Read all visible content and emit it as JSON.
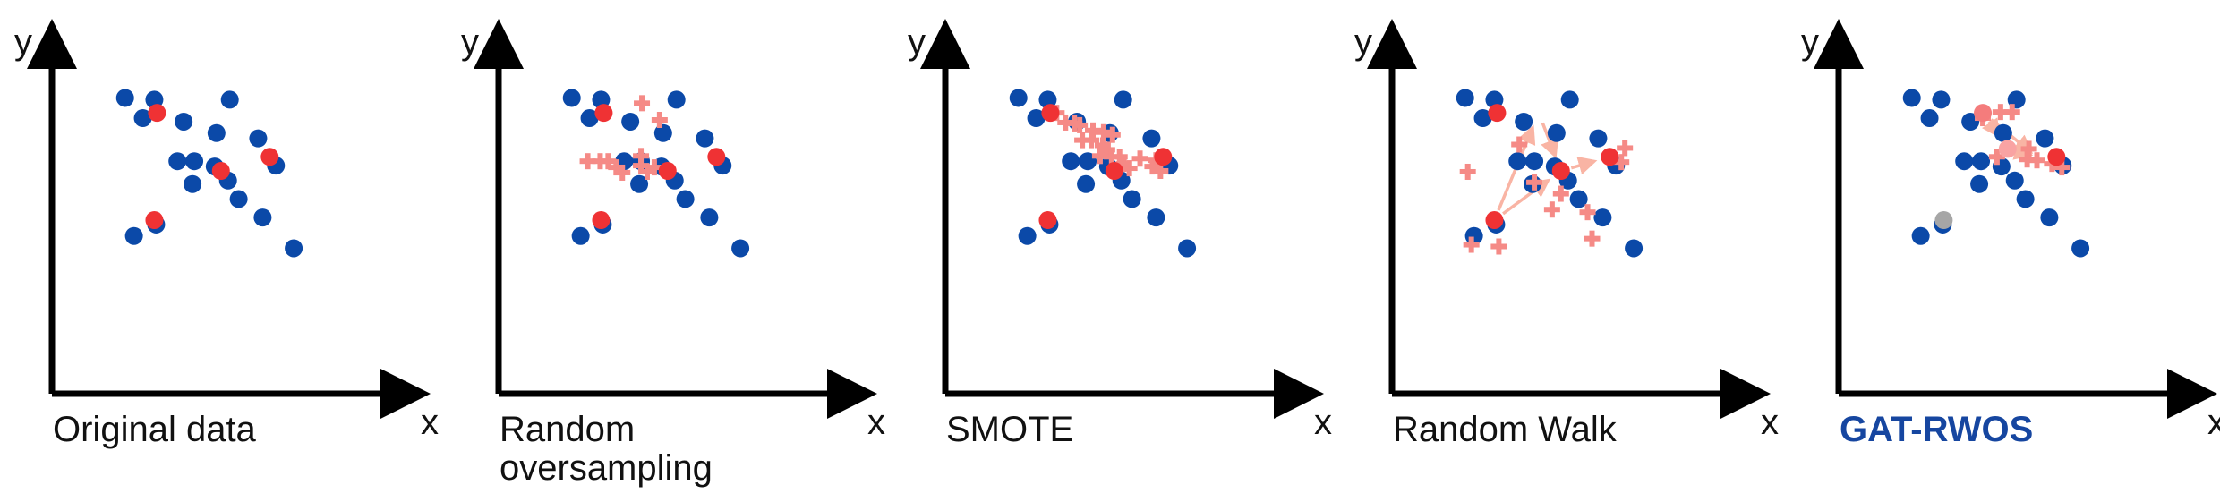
{
  "colors": {
    "majority": "#0b49a8",
    "minority": "#ef3234",
    "synthetic": "#f58a86",
    "arrow": "#f9b4a4",
    "gat_source": "#f47c7c",
    "gat_node": "#f9a3a3",
    "gat_excluded": "#a6a6a6",
    "highlight_caption": "#1646a0",
    "axis": "#000000"
  },
  "panels": [
    {
      "id": "original",
      "axis_labels": {
        "x": "x",
        "y": "y"
      },
      "caption_lines": [
        "Original data"
      ],
      "caption_highlight": false,
      "majority": [
        [
          32,
          32
        ],
        [
          65,
          34
        ],
        [
          150,
          34
        ],
        [
          52,
          55
        ],
        [
          98,
          59
        ],
        [
          135,
          72
        ],
        [
          182,
          78
        ],
        [
          91,
          104
        ],
        [
          110,
          104
        ],
        [
          133,
          110
        ],
        [
          202,
          109
        ],
        [
          148,
          126
        ],
        [
          108,
          130
        ],
        [
          160,
          147
        ],
        [
          187,
          168
        ],
        [
          67,
          176
        ],
        [
          42,
          189
        ],
        [
          222,
          203
        ]
      ],
      "minority": [
        [
          65,
          171
        ],
        [
          140,
          115
        ],
        [
          68,
          49
        ],
        [
          195,
          99
        ]
      ],
      "synthetic": [],
      "arrows": [],
      "special": []
    },
    {
      "id": "random-oversampling",
      "axis_labels": {
        "x": "x",
        "y": "y"
      },
      "caption_lines": [
        "Random",
        "oversampling"
      ],
      "caption_highlight": false,
      "majority": [
        [
          32,
          32
        ],
        [
          65,
          34
        ],
        [
          150,
          34
        ],
        [
          52,
          55
        ],
        [
          98,
          59
        ],
        [
          135,
          72
        ],
        [
          182,
          78
        ],
        [
          91,
          104
        ],
        [
          110,
          104
        ],
        [
          133,
          110
        ],
        [
          202,
          109
        ],
        [
          148,
          126
        ],
        [
          108,
          130
        ],
        [
          160,
          147
        ],
        [
          187,
          168
        ],
        [
          67,
          176
        ],
        [
          42,
          189
        ],
        [
          222,
          203
        ]
      ],
      "minority": [
        [
          65,
          171
        ],
        [
          140,
          115
        ],
        [
          68,
          49
        ],
        [
          195,
          99
        ]
      ],
      "synthetic": [
        [
          111,
          38
        ],
        [
          131,
          57
        ],
        [
          50,
          104
        ],
        [
          82,
          111
        ],
        [
          89,
          117
        ],
        [
          110,
          98
        ],
        [
          117,
          116
        ],
        [
          125,
          111
        ],
        [
          64,
          104
        ],
        [
          73,
          104
        ],
        [
          110,
          109
        ]
      ],
      "arrows": [],
      "special": []
    },
    {
      "id": "smote",
      "axis_labels": {
        "x": "x",
        "y": "y"
      },
      "caption_lines": [
        "SMOTE"
      ],
      "caption_highlight": false,
      "majority": [
        [
          32,
          32
        ],
        [
          65,
          34
        ],
        [
          150,
          34
        ],
        [
          52,
          55
        ],
        [
          98,
          59
        ],
        [
          135,
          72
        ],
        [
          182,
          78
        ],
        [
          91,
          104
        ],
        [
          110,
          104
        ],
        [
          133,
          110
        ],
        [
          202,
          109
        ],
        [
          148,
          126
        ],
        [
          108,
          130
        ],
        [
          160,
          147
        ],
        [
          187,
          168
        ],
        [
          67,
          176
        ],
        [
          42,
          189
        ],
        [
          222,
          203
        ]
      ],
      "minority": [
        [
          65,
          171
        ],
        [
          140,
          115
        ],
        [
          68,
          49
        ],
        [
          195,
          99
        ]
      ],
      "synthetic": [
        [
          75,
          49
        ],
        [
          85,
          60
        ],
        [
          95,
          61
        ],
        [
          101,
          63
        ],
        [
          116,
          69
        ],
        [
          128,
          71
        ],
        [
          138,
          74
        ],
        [
          104,
          80
        ],
        [
          114,
          80
        ],
        [
          127,
          86
        ],
        [
          132,
          91
        ],
        [
          124,
          98
        ],
        [
          137,
          99
        ],
        [
          146,
          99
        ],
        [
          187,
          103
        ],
        [
          183,
          110
        ],
        [
          157,
          112
        ],
        [
          151,
          107
        ],
        [
          169,
          101
        ],
        [
          192,
          115
        ]
      ],
      "arrows": [],
      "special": []
    },
    {
      "id": "random-walk",
      "axis_labels": {
        "x": "x",
        "y": "y"
      },
      "caption_lines": [
        "Random Walk"
      ],
      "caption_highlight": false,
      "majority": [
        [
          32,
          32
        ],
        [
          65,
          34
        ],
        [
          150,
          34
        ],
        [
          52,
          55
        ],
        [
          98,
          59
        ],
        [
          135,
          72
        ],
        [
          182,
          78
        ],
        [
          91,
          104
        ],
        [
          110,
          104
        ],
        [
          133,
          110
        ],
        [
          202,
          109
        ],
        [
          148,
          126
        ],
        [
          108,
          130
        ],
        [
          160,
          147
        ],
        [
          187,
          168
        ],
        [
          67,
          176
        ],
        [
          42,
          189
        ],
        [
          222,
          203
        ]
      ],
      "minority": [
        [
          65,
          171
        ],
        [
          140,
          115
        ],
        [
          68,
          49
        ],
        [
          195,
          99
        ]
      ],
      "synthetic": [
        [
          35,
          116
        ],
        [
          39,
          199
        ],
        [
          70,
          201
        ],
        [
          93,
          85
        ],
        [
          110,
          128
        ],
        [
          130,
          159
        ],
        [
          140,
          141
        ],
        [
          170,
          162
        ],
        [
          175,
          192
        ],
        [
          208,
          105
        ],
        [
          212,
          89
        ]
      ],
      "arrows": [
        [
          [
            65,
            171
          ],
          [
            140,
            115
          ]
        ],
        [
          [
            140,
            115
          ],
          [
            195,
            99
          ]
        ],
        [
          [
            65,
            171
          ],
          [
            115,
            49
          ]
        ],
        [
          [
            115,
            49
          ],
          [
            140,
            115
          ]
        ]
      ],
      "special": []
    },
    {
      "id": "gat-rwos",
      "axis_labels": {
        "x": "x",
        "y": "y"
      },
      "caption_lines": [
        "GAT-RWOS"
      ],
      "caption_highlight": true,
      "majority": [
        [
          32,
          32
        ],
        [
          65,
          34
        ],
        [
          150,
          34
        ],
        [
          52,
          55
        ],
        [
          98,
          59
        ],
        [
          135,
          72
        ],
        [
          182,
          78
        ],
        [
          91,
          104
        ],
        [
          110,
          104
        ],
        [
          133,
          110
        ],
        [
          202,
          109
        ],
        [
          148,
          126
        ],
        [
          108,
          130
        ],
        [
          160,
          147
        ],
        [
          187,
          168
        ],
        [
          67,
          176
        ],
        [
          42,
          189
        ],
        [
          222,
          203
        ]
      ],
      "minority": [
        [
          195,
          99
        ]
      ],
      "synthetic": [
        [
          112,
          55
        ],
        [
          132,
          48
        ],
        [
          128,
          99
        ],
        [
          145,
          48
        ],
        [
          162,
          102
        ],
        [
          164,
          90
        ],
        [
          173,
          103
        ],
        [
          190,
          107
        ],
        [
          201,
          111
        ]
      ],
      "arrows": [
        [
          [
            112,
            49
          ],
          [
            140,
            90
          ]
        ],
        [
          [
            112,
            49
          ],
          [
            180,
            105
          ]
        ],
        [
          [
            140,
            90
          ],
          [
            183,
            101
          ]
        ]
      ],
      "special": [
        {
          "role": "excluded",
          "point": [
            68,
            171
          ]
        },
        {
          "role": "source",
          "point": [
            112,
            49
          ]
        },
        {
          "role": "node",
          "point": [
            140,
            90
          ]
        }
      ]
    }
  ]
}
